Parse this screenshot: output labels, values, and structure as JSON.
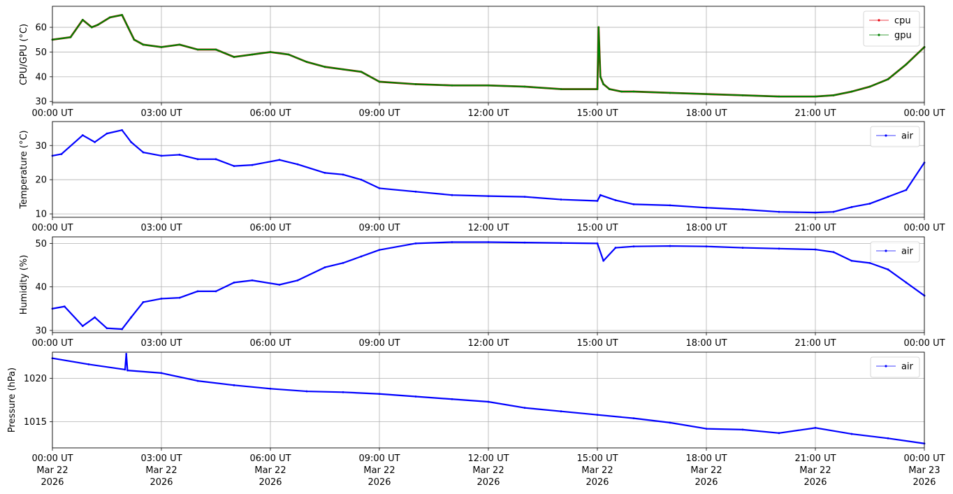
{
  "chart_data": [
    {
      "type": "line",
      "ylabel": "CPU/GPU (°C)",
      "xlim": [
        "2026-03-22 00:00",
        "2026-03-23 00:00"
      ],
      "ylim": [
        29.5,
        68.5
      ],
      "yticks": [
        30,
        40,
        50,
        60
      ],
      "xticklabels": [
        "00:00 UT",
        "03:00 UT",
        "06:00 UT",
        "09:00 UT",
        "12:00 UT",
        "15:00 UT",
        "18:00 UT",
        "21:00 UT",
        "00:00 UT"
      ],
      "grid": true,
      "legend": "upper right",
      "x": [
        "2026-03-22 00:00",
        "2026-03-22 00:30",
        "2026-03-22 00:50",
        "2026-03-22 01:05",
        "2026-03-22 01:15",
        "2026-03-22 01:35",
        "2026-03-22 01:55",
        "2026-03-22 02:05",
        "2026-03-22 02:15",
        "2026-03-22 02:30",
        "2026-03-22 03:00",
        "2026-03-22 03:30",
        "2026-03-22 04:00",
        "2026-03-22 04:30",
        "2026-03-22 05:00",
        "2026-03-22 05:30",
        "2026-03-22 06:00",
        "2026-03-22 06:30",
        "2026-03-22 07:00",
        "2026-03-22 07:30",
        "2026-03-22 08:00",
        "2026-03-22 08:30",
        "2026-03-22 09:00",
        "2026-03-22 10:00",
        "2026-03-22 11:00",
        "2026-03-22 12:00",
        "2026-03-22 13:00",
        "2026-03-22 14:00",
        "2026-03-22 15:00",
        "2026-03-22 15:02",
        "2026-03-22 15:05",
        "2026-03-22 15:10",
        "2026-03-22 15:20",
        "2026-03-22 15:40",
        "2026-03-22 16:00",
        "2026-03-22 17:00",
        "2026-03-22 18:00",
        "2026-03-22 19:00",
        "2026-03-22 20:00",
        "2026-03-22 21:00",
        "2026-03-22 21:30",
        "2026-03-22 22:00",
        "2026-03-22 22:30",
        "2026-03-22 23:00",
        "2026-03-22 23:30",
        "2026-03-23 00:00"
      ],
      "series": [
        {
          "name": "cpu",
          "color": "#e8000b",
          "values": [
            55,
            56,
            63,
            60,
            61,
            64,
            65,
            60,
            55,
            53,
            52,
            53,
            51,
            51,
            48,
            49,
            50,
            49,
            46,
            44,
            43,
            42,
            38,
            37,
            36.5,
            36.5,
            36,
            35,
            35,
            60,
            40,
            37,
            35,
            34,
            34,
            33.5,
            33,
            32.5,
            32,
            32,
            32.5,
            34,
            36,
            39,
            45,
            52
          ]
        },
        {
          "name": "gpu",
          "color": "#008000",
          "values": [
            55,
            56,
            63,
            60,
            61,
            64,
            65,
            60,
            55,
            53,
            52,
            53,
            51,
            51,
            48,
            49,
            50,
            49,
            46,
            44,
            43,
            42,
            38,
            37,
            36.5,
            36.5,
            36,
            35,
            35,
            60,
            40,
            37,
            35,
            34,
            34,
            33.5,
            33,
            32.5,
            32,
            32,
            32.5,
            34,
            36,
            39,
            45,
            52
          ]
        }
      ]
    },
    {
      "type": "line",
      "ylabel": "Temperature (°C)",
      "xlim": [
        "2026-03-22 00:00",
        "2026-03-23 00:00"
      ],
      "ylim": [
        9,
        37
      ],
      "yticks": [
        10,
        20,
        30
      ],
      "xticklabels": [
        "00:00 UT",
        "03:00 UT",
        "06:00 UT",
        "09:00 UT",
        "12:00 UT",
        "15:00 UT",
        "18:00 UT",
        "21:00 UT",
        "00:00 UT"
      ],
      "grid": true,
      "legend": "upper right",
      "x": [
        "2026-03-22 00:00",
        "2026-03-22 00:15",
        "2026-03-22 00:50",
        "2026-03-22 01:10",
        "2026-03-22 01:30",
        "2026-03-22 01:55",
        "2026-03-22 02:10",
        "2026-03-22 02:30",
        "2026-03-22 03:00",
        "2026-03-22 03:30",
        "2026-03-22 04:00",
        "2026-03-22 04:30",
        "2026-03-22 05:00",
        "2026-03-22 05:30",
        "2026-03-22 06:15",
        "2026-03-22 06:45",
        "2026-03-22 07:30",
        "2026-03-22 08:00",
        "2026-03-22 08:30",
        "2026-03-22 09:00",
        "2026-03-22 10:00",
        "2026-03-22 11:00",
        "2026-03-22 12:00",
        "2026-03-22 13:00",
        "2026-03-22 14:00",
        "2026-03-22 15:00",
        "2026-03-22 15:05",
        "2026-03-22 15:30",
        "2026-03-22 16:00",
        "2026-03-22 17:00",
        "2026-03-22 18:00",
        "2026-03-22 19:00",
        "2026-03-22 20:00",
        "2026-03-22 21:00",
        "2026-03-22 21:30",
        "2026-03-22 22:00",
        "2026-03-22 22:30",
        "2026-03-22 23:00",
        "2026-03-22 23:30",
        "2026-03-23 00:00"
      ],
      "series": [
        {
          "name": "air",
          "color": "#0000ff",
          "values": [
            27,
            27.5,
            33,
            31,
            33.5,
            34.5,
            31,
            28,
            27,
            27.3,
            26,
            26,
            24,
            24.3,
            25.8,
            24.5,
            22,
            21.5,
            20,
            17.5,
            16.5,
            15.5,
            15.2,
            15,
            14.2,
            13.8,
            15.5,
            14,
            12.8,
            12.5,
            11.8,
            11.3,
            10.6,
            10.4,
            10.6,
            12,
            13,
            15,
            17,
            25
          ]
        }
      ]
    },
    {
      "type": "line",
      "ylabel": "Humidity (%)",
      "xlim": [
        "2026-03-22 00:00",
        "2026-03-23 00:00"
      ],
      "ylim": [
        29.5,
        51.5
      ],
      "yticks": [
        30,
        40,
        50
      ],
      "xticklabels": [
        "00:00 UT",
        "03:00 UT",
        "06:00 UT",
        "09:00 UT",
        "12:00 UT",
        "15:00 UT",
        "18:00 UT",
        "21:00 UT",
        "00:00 UT"
      ],
      "grid": true,
      "legend": "upper right",
      "x": [
        "2026-03-22 00:00",
        "2026-03-22 00:20",
        "2026-03-22 00:50",
        "2026-03-22 01:10",
        "2026-03-22 01:30",
        "2026-03-22 01:55",
        "2026-03-22 02:10",
        "2026-03-22 02:30",
        "2026-03-22 03:00",
        "2026-03-22 03:30",
        "2026-03-22 04:00",
        "2026-03-22 04:30",
        "2026-03-22 05:00",
        "2026-03-22 05:30",
        "2026-03-22 06:15",
        "2026-03-22 06:45",
        "2026-03-22 07:30",
        "2026-03-22 08:00",
        "2026-03-22 08:30",
        "2026-03-22 09:00",
        "2026-03-22 10:00",
        "2026-03-22 11:00",
        "2026-03-22 12:00",
        "2026-03-22 13:00",
        "2026-03-22 14:00",
        "2026-03-22 15:00",
        "2026-03-22 15:10",
        "2026-03-22 15:30",
        "2026-03-22 16:00",
        "2026-03-22 17:00",
        "2026-03-22 18:00",
        "2026-03-22 19:00",
        "2026-03-22 20:00",
        "2026-03-22 21:00",
        "2026-03-22 21:30",
        "2026-03-22 22:00",
        "2026-03-22 22:30",
        "2026-03-22 23:00",
        "2026-03-22 23:30",
        "2026-03-23 00:00"
      ],
      "series": [
        {
          "name": "air",
          "color": "#0000ff",
          "values": [
            35,
            35.5,
            31,
            33,
            30.5,
            30.3,
            33,
            36.5,
            37.3,
            37.5,
            39,
            39,
            41,
            41.5,
            40.5,
            41.5,
            44.5,
            45.5,
            47,
            48.5,
            50,
            50.3,
            50.3,
            50.2,
            50.1,
            50,
            46,
            49,
            49.3,
            49.4,
            49.3,
            49,
            48.8,
            48.6,
            48,
            46,
            45.5,
            44,
            41,
            38
          ]
        }
      ]
    },
    {
      "type": "line",
      "ylabel": "Pressure (hPa)",
      "xlim": [
        "2026-03-22 00:00",
        "2026-03-23 00:00"
      ],
      "ylim": [
        1012,
        1023
      ],
      "yticks": [
        1015,
        1020
      ],
      "xticklabels": [
        "00:00 UT\nMar 22\n2026",
        "03:00 UT\nMar 22\n2026",
        "06:00 UT\nMar 22\n2026",
        "09:00 UT\nMar 22\n2026",
        "12:00 UT\nMar 22\n2026",
        "15:00 UT\nMar 22\n2026",
        "18:00 UT\nMar 22\n2026",
        "21:00 UT\nMar 22\n2026",
        "00:00 UT\nMar 23\n2026"
      ],
      "grid": true,
      "legend": "upper right",
      "x": [
        "2026-03-22 00:00",
        "2026-03-22 01:00",
        "2026-03-22 02:00",
        "2026-03-22 02:02",
        "2026-03-22 02:04",
        "2026-03-22 03:00",
        "2026-03-22 04:00",
        "2026-03-22 05:00",
        "2026-03-22 06:00",
        "2026-03-22 07:00",
        "2026-03-22 08:00",
        "2026-03-22 09:00",
        "2026-03-22 10:00",
        "2026-03-22 11:00",
        "2026-03-22 12:00",
        "2026-03-22 13:00",
        "2026-03-22 14:00",
        "2026-03-22 15:00",
        "2026-03-22 16:00",
        "2026-03-22 17:00",
        "2026-03-22 18:00",
        "2026-03-22 19:00",
        "2026-03-22 20:00",
        "2026-03-22 21:00",
        "2026-03-22 22:00",
        "2026-03-22 23:00",
        "2026-03-23 00:00"
      ],
      "series": [
        {
          "name": "air",
          "color": "#0000ff",
          "values": [
            1022.3,
            1021.6,
            1021,
            1022.8,
            1020.9,
            1020.6,
            1019.7,
            1019.2,
            1018.8,
            1018.5,
            1018.4,
            1018.2,
            1017.9,
            1017.6,
            1017.3,
            1016.6,
            1016.2,
            1015.8,
            1015.4,
            1014.9,
            1014.2,
            1014.1,
            1013.7,
            1014.3,
            1013.6,
            1013.1,
            1012.5
          ]
        }
      ]
    }
  ]
}
